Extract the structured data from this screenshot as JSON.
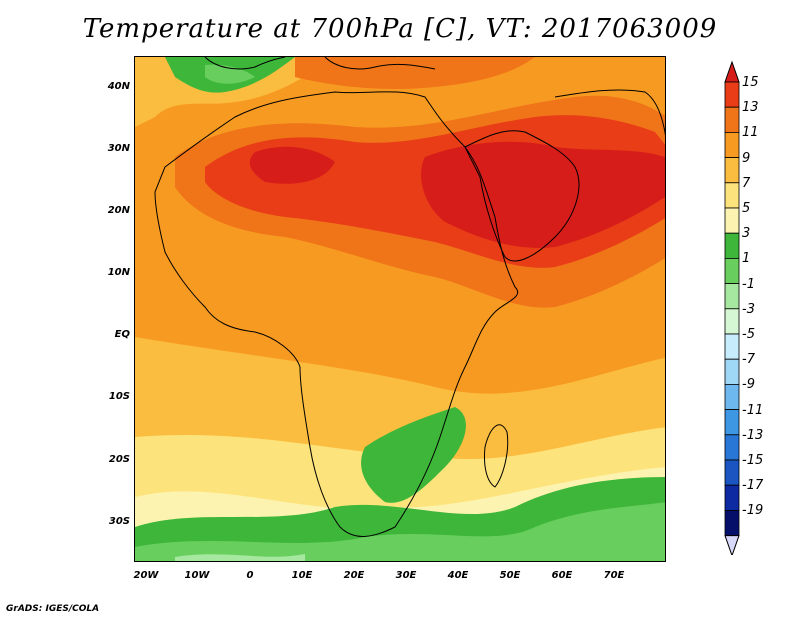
{
  "title": "Temperature at 700hPa [C], VT: 2017063009",
  "credit": "GrADS: IGES/COLA",
  "map": {
    "lat_labels": [
      "40N",
      "30N",
      "20N",
      "10N",
      "EQ",
      "10S",
      "20S",
      "30S"
    ],
    "lon_labels": [
      "20W",
      "10W",
      "0",
      "10E",
      "20E",
      "30E",
      "40E",
      "50E",
      "60E",
      "70E"
    ]
  },
  "colorbar": {
    "labels": [
      "15",
      "13",
      "11",
      "9",
      "7",
      "5",
      "3",
      "1",
      "-1",
      "-3",
      "-5",
      "-7",
      "-9",
      "-11",
      "-13",
      "-15",
      "-17",
      "-19"
    ],
    "colors": [
      "#d71d1a",
      "#e83d17",
      "#f07418",
      "#f79a22",
      "#fbbd3f",
      "#fde37b",
      "#fdf3b1",
      "#3db63a",
      "#68cf5e",
      "#a6e8a0",
      "#d6f7d3",
      "#c7ecfb",
      "#9fd8f6",
      "#6db8ef",
      "#3e97e3",
      "#2876d6",
      "#1a55c2",
      "#0d2aa3",
      "#06106a",
      "#d8d8f8"
    ]
  }
}
